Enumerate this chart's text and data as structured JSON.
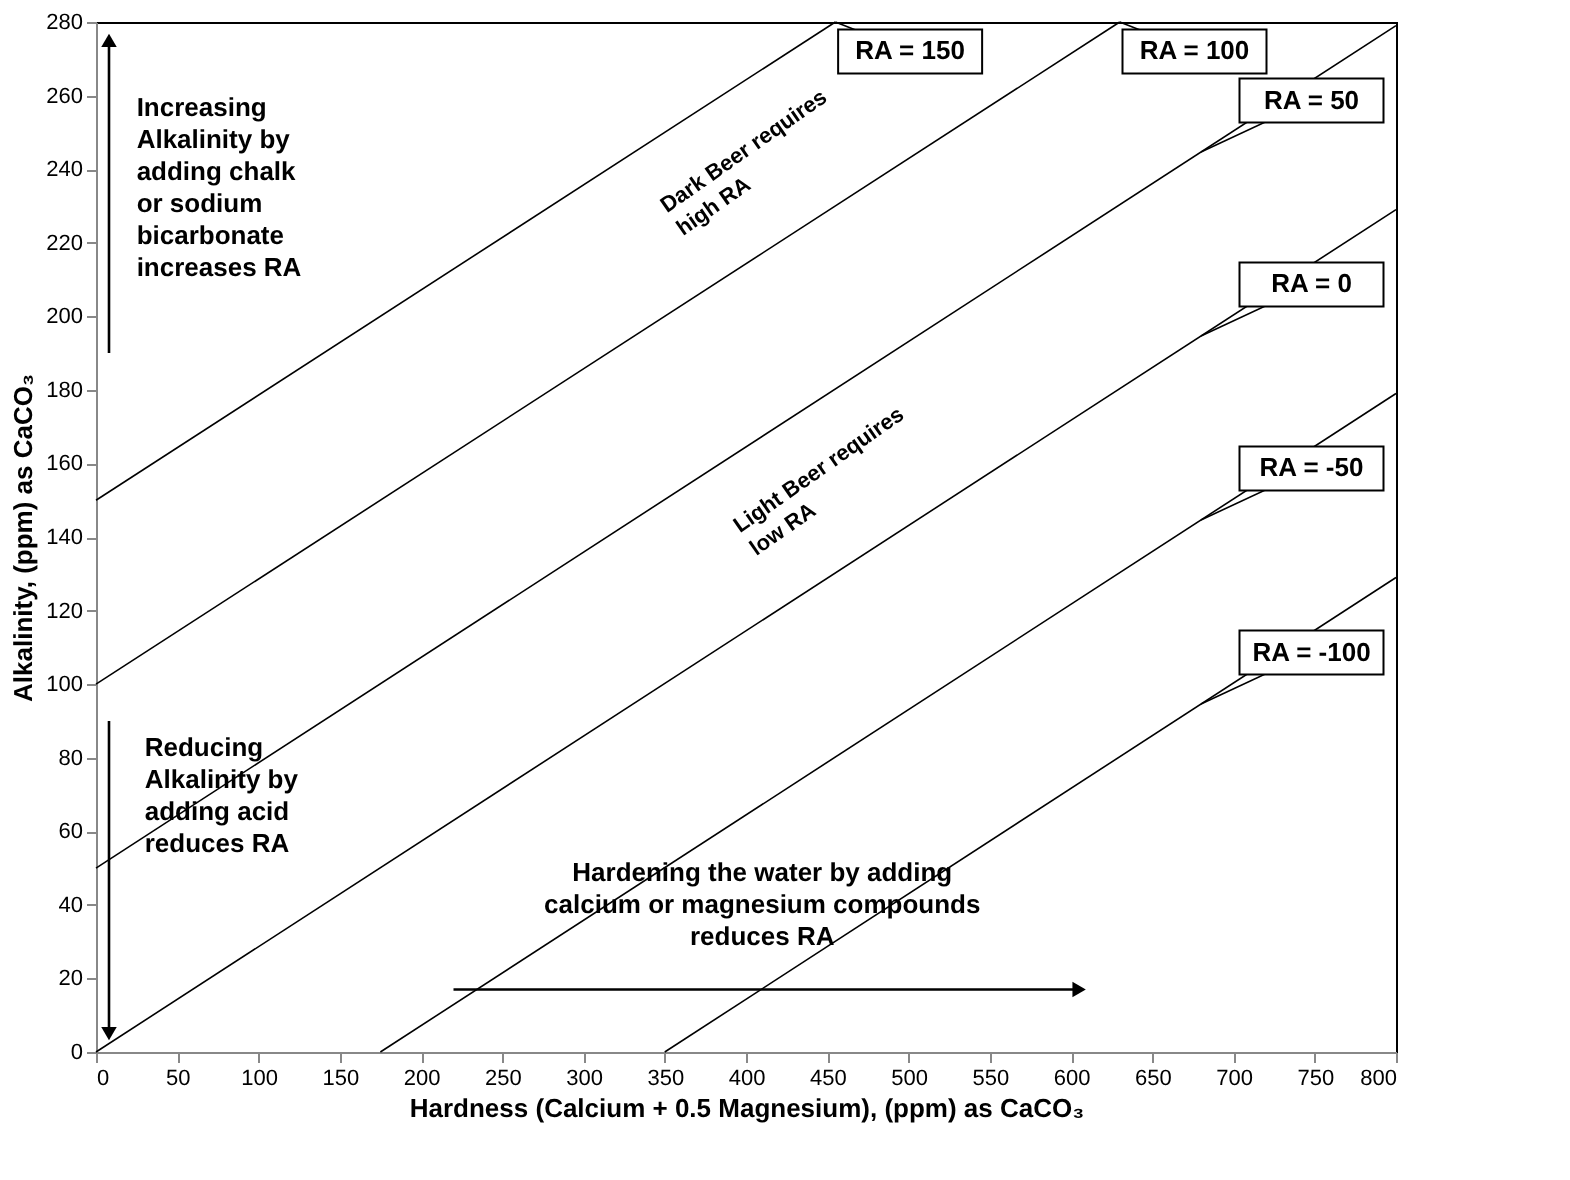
{
  "chart_data": {
    "type": "line",
    "xlabel": "Hardness (Calcium + 0.5 Magnesium), (ppm) as CaCO₃",
    "ylabel": "Alkalinity, (ppm) as CaCO₃",
    "xlim": [
      0,
      800
    ],
    "ylim": [
      0,
      280
    ],
    "xticks": [
      0,
      50,
      100,
      150,
      200,
      250,
      300,
      350,
      400,
      450,
      500,
      550,
      600,
      650,
      700,
      750,
      800
    ],
    "yticks": [
      0,
      20,
      40,
      60,
      80,
      100,
      120,
      140,
      160,
      180,
      200,
      220,
      240,
      260,
      280
    ],
    "grid": false,
    "legend": false,
    "marker": "none",
    "line_style": "solid",
    "series": [
      {
        "name": "RA = 150",
        "color": "#000000",
        "x": [
          0,
          455
        ],
        "values": [
          150,
          280
        ]
      },
      {
        "name": "RA = 100",
        "color": "#000000",
        "x": [
          0,
          630
        ],
        "values": [
          100,
          280
        ]
      },
      {
        "name": "RA = 50",
        "color": "#000000",
        "x": [
          0,
          800
        ],
        "values": [
          50,
          279
        ]
      },
      {
        "name": "RA = 0",
        "color": "#000000",
        "x": [
          0,
          800
        ],
        "values": [
          0,
          229
        ]
      },
      {
        "name": "RA = -50",
        "color": "#000000",
        "x": [
          175,
          800
        ],
        "values": [
          0,
          179
        ]
      },
      {
        "name": "RA = -100",
        "color": "#000000",
        "x": [
          350,
          800
        ],
        "values": [
          0,
          129
        ]
      }
    ],
    "annotations": [
      "Increasing\nAlkalinity by\nadding chalk\nor sodium\nbicarbonate\nincreases RA",
      "Dark Beer requires\nhigh RA",
      "Light Beer requires\nlow RA",
      "Reducing\nAlkalinity by\nadding acid\nreduces RA",
      "Hardening the water by adding\ncalcium or magnesium compounds\nreduces RA"
    ]
  }
}
